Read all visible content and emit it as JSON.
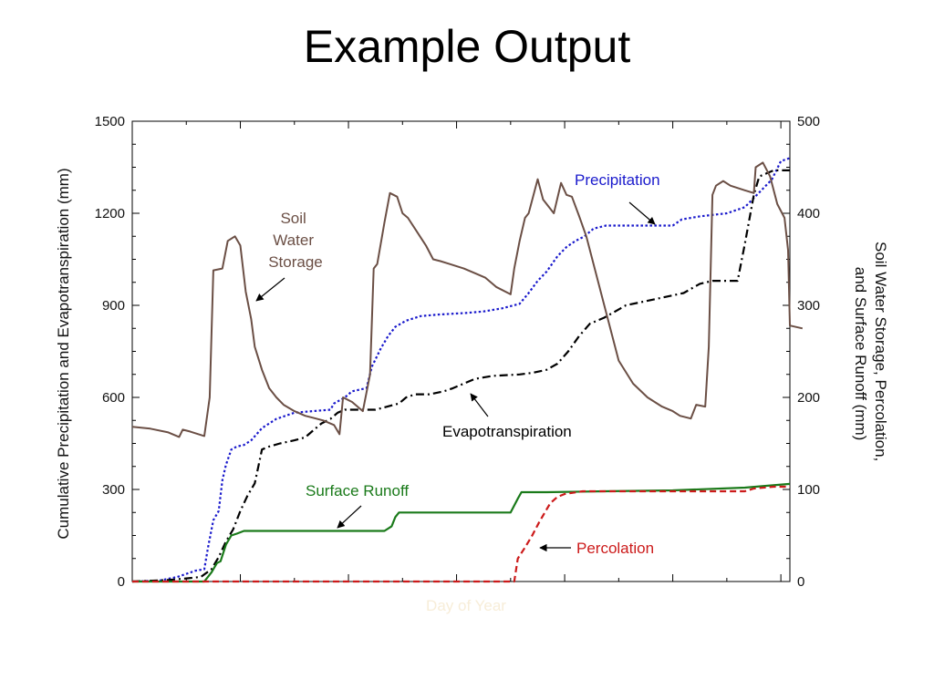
{
  "slide": {
    "title": "Example Output"
  },
  "chart_data": {
    "type": "line",
    "title": "Example Output",
    "xlabel": "Day of Year",
    "ylabel_left": "Cumulative Precipitation and Evapotranspiration (mm)",
    "ylabel_right": "Soil Water Storage, Percolation, and Surface Runoff (mm)",
    "xlim": [
      0,
      365
    ],
    "ylim_left": [
      0,
      1500
    ],
    "ylim_right": [
      0,
      500
    ],
    "yticks_left": [
      0,
      300,
      600,
      900,
      1200,
      1500
    ],
    "yticks_right": [
      0,
      100,
      200,
      300,
      400,
      500
    ],
    "x_tick_labels_shown": false,
    "grid": false,
    "legend": "inline annotations",
    "colors": {
      "precipitation": "#1a1acc",
      "evapotranspiration": "#000000",
      "soil_water_storage": "#6b4f45",
      "surface_runoff": "#1a7a1a",
      "percolation": "#cc1a1a"
    },
    "series": [
      {
        "name": "Precipitation",
        "axis": "left",
        "style": "dotted",
        "color_key": "precipitation",
        "points": [
          [
            0,
            0
          ],
          [
            15,
            3
          ],
          [
            25,
            15
          ],
          [
            35,
            35
          ],
          [
            40,
            40
          ],
          [
            42,
            110
          ],
          [
            45,
            200
          ],
          [
            48,
            230
          ],
          [
            50,
            330
          ],
          [
            52,
            380
          ],
          [
            55,
            430
          ],
          [
            58,
            440
          ],
          [
            62,
            445
          ],
          [
            66,
            460
          ],
          [
            72,
            500
          ],
          [
            80,
            530
          ],
          [
            90,
            550
          ],
          [
            100,
            555
          ],
          [
            110,
            560
          ],
          [
            112,
            580
          ],
          [
            118,
            600
          ],
          [
            122,
            620
          ],
          [
            130,
            630
          ],
          [
            133,
            700
          ],
          [
            138,
            760
          ],
          [
            142,
            800
          ],
          [
            146,
            830
          ],
          [
            152,
            850
          ],
          [
            160,
            865
          ],
          [
            170,
            870
          ],
          [
            185,
            875
          ],
          [
            195,
            880
          ],
          [
            205,
            890
          ],
          [
            215,
            905
          ],
          [
            220,
            940
          ],
          [
            225,
            980
          ],
          [
            230,
            1010
          ],
          [
            236,
            1060
          ],
          [
            241,
            1090
          ],
          [
            246,
            1110
          ],
          [
            251,
            1125
          ],
          [
            256,
            1150
          ],
          [
            263,
            1160
          ],
          [
            275,
            1160
          ],
          [
            300,
            1160
          ],
          [
            305,
            1180
          ],
          [
            315,
            1190
          ],
          [
            330,
            1200
          ],
          [
            340,
            1220
          ],
          [
            345,
            1250
          ],
          [
            355,
            1310
          ],
          [
            360,
            1370
          ],
          [
            365,
            1380
          ]
        ]
      },
      {
        "name": "Evapotranspiration",
        "axis": "left",
        "style": "dash-dot",
        "color_key": "evapotranspiration",
        "points": [
          [
            0,
            0
          ],
          [
            20,
            5
          ],
          [
            30,
            10
          ],
          [
            38,
            15
          ],
          [
            44,
            40
          ],
          [
            48,
            80
          ],
          [
            52,
            130
          ],
          [
            56,
            170
          ],
          [
            60,
            230
          ],
          [
            64,
            280
          ],
          [
            68,
            320
          ],
          [
            72,
            430
          ],
          [
            76,
            440
          ],
          [
            82,
            450
          ],
          [
            90,
            460
          ],
          [
            96,
            470
          ],
          [
            100,
            490
          ],
          [
            105,
            515
          ],
          [
            110,
            530
          ],
          [
            114,
            550
          ],
          [
            118,
            560
          ],
          [
            125,
            560
          ],
          [
            135,
            560
          ],
          [
            148,
            580
          ],
          [
            152,
            600
          ],
          [
            157,
            610
          ],
          [
            165,
            610
          ],
          [
            173,
            620
          ],
          [
            178,
            630
          ],
          [
            190,
            660
          ],
          [
            200,
            670
          ],
          [
            215,
            675
          ],
          [
            222,
            680
          ],
          [
            230,
            690
          ],
          [
            236,
            710
          ],
          [
            242,
            750
          ],
          [
            248,
            800
          ],
          [
            254,
            840
          ],
          [
            262,
            860
          ],
          [
            274,
            900
          ],
          [
            290,
            920
          ],
          [
            306,
            940
          ],
          [
            315,
            970
          ],
          [
            322,
            980
          ],
          [
            336,
            980
          ],
          [
            340,
            1100
          ],
          [
            345,
            1260
          ],
          [
            348,
            1320
          ],
          [
            356,
            1340
          ],
          [
            365,
            1340
          ]
        ]
      },
      {
        "name": "Soil Water Storage",
        "axis": "right",
        "style": "solid",
        "color_key": "soil_water_storage",
        "points": [
          [
            0,
            168
          ],
          [
            10,
            166
          ],
          [
            20,
            162
          ],
          [
            26,
            157
          ],
          [
            28,
            165
          ],
          [
            32,
            163
          ],
          [
            40,
            158
          ],
          [
            43,
            200
          ],
          [
            45,
            338
          ],
          [
            50,
            340
          ],
          [
            53,
            370
          ],
          [
            57,
            375
          ],
          [
            60,
            365
          ],
          [
            63,
            315
          ],
          [
            66,
            285
          ],
          [
            68,
            255
          ],
          [
            72,
            230
          ],
          [
            76,
            210
          ],
          [
            80,
            200
          ],
          [
            84,
            192
          ],
          [
            90,
            185
          ],
          [
            96,
            180
          ],
          [
            100,
            178
          ],
          [
            106,
            175
          ],
          [
            112,
            170
          ],
          [
            115,
            160
          ],
          [
            117,
            200
          ],
          [
            122,
            195
          ],
          [
            128,
            185
          ],
          [
            132,
            225
          ],
          [
            134,
            340
          ],
          [
            136,
            345
          ],
          [
            140,
            390
          ],
          [
            143,
            422
          ],
          [
            147,
            418
          ],
          [
            150,
            400
          ],
          [
            153,
            395
          ],
          [
            158,
            380
          ],
          [
            163,
            365
          ],
          [
            167,
            350
          ],
          [
            171,
            348
          ],
          [
            176,
            345
          ],
          [
            184,
            340
          ],
          [
            190,
            335
          ],
          [
            196,
            330
          ],
          [
            202,
            320
          ],
          [
            210,
            312
          ],
          [
            212,
            340
          ],
          [
            215,
            370
          ],
          [
            218,
            395
          ],
          [
            220,
            400
          ],
          [
            225,
            437
          ],
          [
            228,
            415
          ],
          [
            234,
            400
          ],
          [
            238,
            433
          ],
          [
            241,
            420
          ],
          [
            244,
            418
          ],
          [
            248,
            397
          ],
          [
            252,
            375
          ],
          [
            256,
            345
          ],
          [
            262,
            300
          ],
          [
            270,
            240
          ],
          [
            278,
            215
          ],
          [
            286,
            200
          ],
          [
            294,
            190
          ],
          [
            300,
            185
          ],
          [
            304,
            180
          ],
          [
            310,
            177
          ],
          [
            313,
            192
          ],
          [
            318,
            190
          ],
          [
            320,
            255
          ],
          [
            322,
            420
          ],
          [
            324,
            430
          ],
          [
            328,
            435
          ],
          [
            332,
            430
          ],
          [
            340,
            425
          ],
          [
            345,
            422
          ],
          [
            346,
            450
          ],
          [
            350,
            455
          ],
          [
            354,
            440
          ],
          [
            358,
            410
          ],
          [
            362,
            395
          ],
          [
            364,
            360
          ],
          [
            365,
            278
          ],
          [
            372,
            275
          ]
        ]
      },
      {
        "name": "Surface Runoff",
        "axis": "right",
        "style": "solid",
        "color_key": "surface_runoff",
        "points": [
          [
            0,
            0
          ],
          [
            40,
            0
          ],
          [
            44,
            10
          ],
          [
            47,
            20
          ],
          [
            49,
            22
          ],
          [
            52,
            40
          ],
          [
            55,
            50
          ],
          [
            58,
            52
          ],
          [
            62,
            55
          ],
          [
            75,
            55
          ],
          [
            140,
            55
          ],
          [
            144,
            60
          ],
          [
            146,
            70
          ],
          [
            148,
            75
          ],
          [
            210,
            75
          ],
          [
            214,
            90
          ],
          [
            216,
            97
          ],
          [
            230,
            97
          ],
          [
            262,
            98
          ],
          [
            300,
            99
          ],
          [
            340,
            102
          ],
          [
            352,
            104
          ],
          [
            365,
            106
          ]
        ]
      },
      {
        "name": "Percolation",
        "axis": "right",
        "style": "dashed",
        "color_key": "percolation",
        "points": [
          [
            0,
            0
          ],
          [
            212,
            0
          ],
          [
            214,
            25
          ],
          [
            218,
            37
          ],
          [
            222,
            50
          ],
          [
            226,
            65
          ],
          [
            232,
            85
          ],
          [
            236,
            92
          ],
          [
            240,
            95
          ],
          [
            250,
            98
          ],
          [
            340,
            98
          ],
          [
            345,
            101
          ],
          [
            356,
            103
          ],
          [
            365,
            103
          ]
        ]
      }
    ],
    "annotations": [
      {
        "text": [
          "Soil",
          "Water",
          "Storage"
        ],
        "target_series": "Soil Water Storage"
      },
      {
        "text": [
          "Precipitation"
        ],
        "target_series": "Precipitation"
      },
      {
        "text": [
          "Evapotranspiration"
        ],
        "target_series": "Evapotranspiration"
      },
      {
        "text": [
          "Surface Runoff"
        ],
        "target_series": "Surface Runoff"
      },
      {
        "text": [
          "Percolation"
        ],
        "target_series": "Percolation"
      }
    ]
  }
}
